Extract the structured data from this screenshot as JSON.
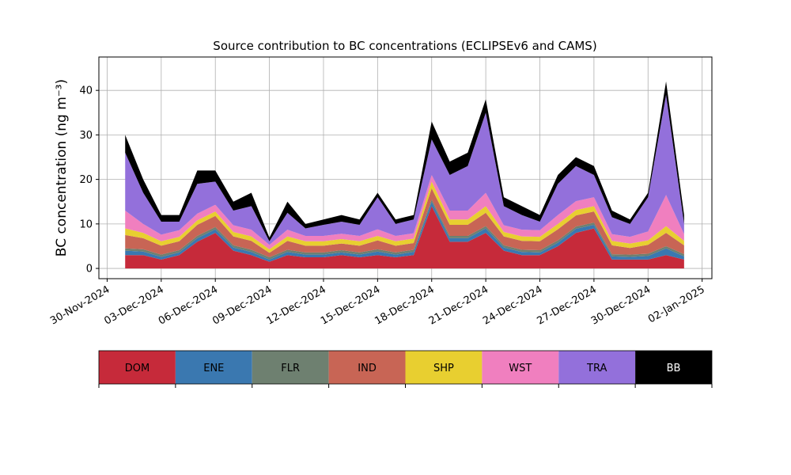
{
  "chart_data": {
    "type": "stacked_area",
    "title": "Source contribution to BC concentrations (ECLIPSEv6 and CAMS)",
    "y_label": "BC concentration (ng m⁻³)",
    "x": [
      "2024-12-01",
      "2024-12-02",
      "2024-12-03",
      "2024-12-04",
      "2024-12-05",
      "2024-12-06",
      "2024-12-07",
      "2024-12-08",
      "2024-12-09",
      "2024-12-10",
      "2024-12-11",
      "2024-12-12",
      "2024-12-13",
      "2024-12-14",
      "2024-12-15",
      "2024-12-16",
      "2024-12-17",
      "2024-12-18",
      "2024-12-19",
      "2024-12-20",
      "2024-12-21",
      "2024-12-22",
      "2024-12-23",
      "2024-12-24",
      "2024-12-25",
      "2024-12-26",
      "2024-12-27",
      "2024-12-28",
      "2024-12-29",
      "2024-12-30",
      "2024-12-31",
      "2025-01-01"
    ],
    "series": [
      {
        "name": "DOM",
        "color": "#c62a3a",
        "values": [
          3,
          3,
          2,
          3,
          6,
          8,
          4,
          3,
          1.5,
          3,
          2.5,
          2.5,
          3,
          2.5,
          3,
          2.5,
          3,
          14,
          6,
          6,
          8,
          4,
          3,
          3,
          5,
          8,
          9,
          2,
          2,
          2,
          3,
          2
        ]
      },
      {
        "name": "ENE",
        "color": "#3a78b0",
        "values": [
          1,
          0.8,
          0.6,
          0.6,
          0.8,
          0.8,
          0.7,
          0.7,
          0.5,
          0.7,
          0.6,
          0.6,
          0.6,
          0.6,
          0.8,
          0.6,
          0.7,
          1,
          0.8,
          0.8,
          1,
          0.7,
          0.7,
          0.6,
          0.8,
          0.9,
          0.8,
          0.7,
          0.6,
          0.8,
          1.5,
          0.7
        ]
      },
      {
        "name": "FLR",
        "color": "#6e8070",
        "values": [
          0.5,
          0.5,
          0.5,
          0.5,
          0.5,
          0.5,
          0.5,
          0.5,
          0.5,
          0.5,
          0.5,
          0.5,
          0.5,
          0.5,
          0.5,
          0.5,
          0.5,
          0.5,
          0.5,
          0.5,
          0.5,
          0.5,
          0.5,
          0.5,
          0.5,
          0.5,
          0.5,
          0.5,
          0.5,
          0.5,
          0.5,
          0.5
        ]
      },
      {
        "name": "IND",
        "color": "#c86555",
        "values": [
          3,
          2.5,
          2,
          2,
          2.5,
          2.5,
          2,
          2,
          1,
          2,
          1.5,
          1.5,
          1.5,
          1.5,
          2,
          1.5,
          1.5,
          2.5,
          2.5,
          2.5,
          3,
          2,
          2,
          2,
          2.5,
          2.5,
          2.5,
          2,
          1.5,
          2,
          3,
          2
        ]
      },
      {
        "name": "SHP",
        "color": "#e8cf30",
        "values": [
          1.5,
          1.2,
          1,
          1,
          1,
          1,
          1,
          1,
          0.8,
          1,
          1,
          1,
          1,
          1,
          1,
          1,
          1,
          1.5,
          1.2,
          1.2,
          1.5,
          1,
          1,
          1,
          1.2,
          1.2,
          1.2,
          1,
          1,
          1,
          1.5,
          1
        ]
      },
      {
        "name": "WST",
        "color": "#f07fbf",
        "values": [
          4,
          2,
          1.5,
          1.5,
          1.5,
          1.5,
          1.5,
          1.5,
          1,
          1.5,
          1.2,
          1.2,
          1.2,
          1.2,
          1.5,
          1.2,
          1.2,
          1.5,
          2,
          2,
          3,
          1.5,
          1.5,
          1.5,
          2,
          2,
          2,
          1.5,
          1.5,
          2,
          7,
          1.5
        ]
      },
      {
        "name": "TRA",
        "color": "#9370db",
        "values": [
          13,
          7,
          2.9,
          1.9,
          6.7,
          5.2,
          3.3,
          5.3,
          0.8,
          3.8,
          1.7,
          2.5,
          2.7,
          2.5,
          7.2,
          2.7,
          3.1,
          8,
          8,
          10,
          18,
          4.3,
          3.3,
          1.9,
          7,
          7.9,
          5,
          3.8,
          2.9,
          7.7,
          22.5,
          2.3
        ]
      },
      {
        "name": "BB",
        "color": "#000000",
        "values": [
          4,
          3,
          1.5,
          1.5,
          3,
          2.5,
          2,
          3,
          0.8,
          2.5,
          1,
          1.2,
          1.5,
          1.2,
          1,
          1,
          1,
          4,
          3,
          3,
          3,
          2,
          2,
          1.5,
          2,
          2,
          2,
          1.5,
          1,
          1,
          3,
          2
        ]
      }
    ],
    "xlim": [
      "2024-11-29T13:00Z",
      "2025-01-02T13:00Z"
    ],
    "xticks": [
      {
        "value": "2024-11-30",
        "label": "30-Nov-2024"
      },
      {
        "value": "2024-12-03",
        "label": "03-Dec-2024"
      },
      {
        "value": "2024-12-06",
        "label": "06-Dec-2024"
      },
      {
        "value": "2024-12-09",
        "label": "09-Dec-2024"
      },
      {
        "value": "2024-12-12",
        "label": "12-Dec-2024"
      },
      {
        "value": "2024-12-15",
        "label": "15-Dec-2024"
      },
      {
        "value": "2024-12-18",
        "label": "18-Dec-2024"
      },
      {
        "value": "2024-12-21",
        "label": "21-Dec-2024"
      },
      {
        "value": "2024-12-24",
        "label": "24-Dec-2024"
      },
      {
        "value": "2024-12-27",
        "label": "27-Dec-2024"
      },
      {
        "value": "2024-12-30",
        "label": "30-Dec-2024"
      },
      {
        "value": "2025-01-02",
        "label": "02-Jan-2025"
      }
    ],
    "ylim": [
      -2.3,
      47.5
    ],
    "yticks": [
      0,
      10,
      20,
      30,
      40
    ],
    "grid": true,
    "legend": "bottom"
  }
}
